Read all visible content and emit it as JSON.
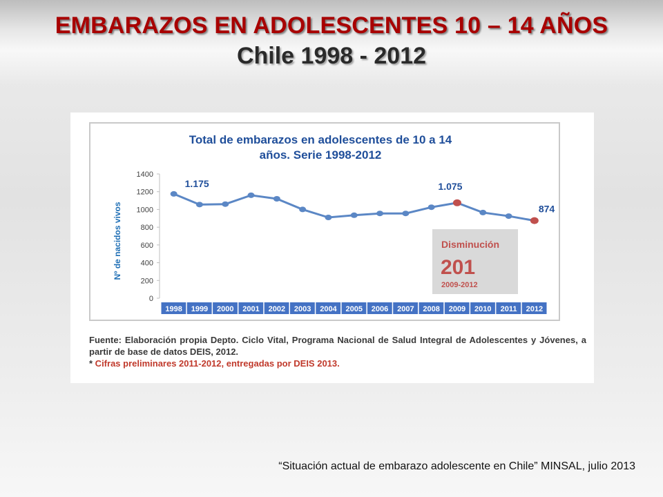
{
  "slide": {
    "title": "EMBARAZOS EN ADOLESCENTES 10 – 14 AÑOS",
    "subtitle": "Chile 1998 - 2012",
    "citation": "“Situación actual de embarazo adolescente en Chile” MINSAL, julio 2013"
  },
  "source": {
    "text": "Fuente: Elaboración propia Depto. Ciclo Vital, Programa Nacional de Salud Integral de Adolescentes y Jóvenes,  a partir de base de datos DEIS, 2012.",
    "note_star": "*",
    "note": " Cifras preliminares 2011-2012, entregadas por DEIS 2013."
  },
  "chart_data": {
    "type": "line",
    "title_line1": "Total de embarazos en adolescentes de 10 a 14",
    "title_line2": "años. Serie 1998-2012",
    "ylabel": "Nº de nacidos vivos",
    "ylim": [
      0,
      1400
    ],
    "yticks": [
      0,
      200,
      400,
      600,
      800,
      1000,
      1200,
      1400
    ],
    "categories": [
      "1998",
      "1999",
      "2000",
      "2001",
      "2002",
      "2003",
      "2004",
      "2005",
      "2006",
      "2007",
      "2008",
      "2009",
      "2010",
      "2011",
      "2012"
    ],
    "values": [
      1175,
      1055,
      1060,
      1160,
      1120,
      1000,
      910,
      935,
      955,
      955,
      1025,
      1075,
      965,
      925,
      874
    ],
    "highlighted": [
      "2009",
      "2012"
    ],
    "data_labels": [
      {
        "category": "1998",
        "text": "1.175"
      },
      {
        "category": "2009",
        "text": "1.075"
      },
      {
        "category": "2012",
        "text": "874"
      }
    ],
    "callout": {
      "label": "Disminución",
      "value": "201",
      "period": "2009-2012"
    },
    "colors": {
      "line": "#5b87c5",
      "point": "#5b87c5",
      "highlight_point": "#c0504d",
      "title": "#1f4e9a",
      "axis_label": "#1f6fb5",
      "category_bg": "#4472c4",
      "category_text": "#ffffff",
      "callout_bg": "#d9d9d9",
      "callout_text": "#c0504d"
    }
  }
}
